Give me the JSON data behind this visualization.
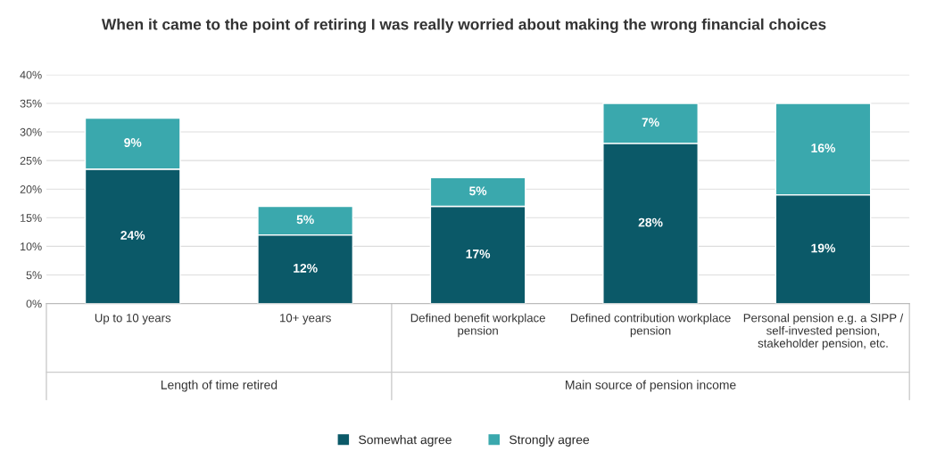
{
  "chart_data": {
    "type": "bar",
    "stacked": true,
    "title": "When it came to the point of retiring I was really worried about making the wrong financial choices",
    "categories": [
      "Up to 10 years",
      "10+ years",
      "Defined benefit workplace\npension",
      "Defined contribution workplace\npension",
      "Personal pension e.g. a SIPP /\nself-invested pension,\nstakeholder pension, etc."
    ],
    "series": [
      {
        "name": "Somewhat agree",
        "color": "#0b5968",
        "values": [
          23.5,
          12,
          17,
          28,
          19
        ],
        "value_labels": [
          "24%",
          "12%",
          "17%",
          "28%",
          "19%"
        ]
      },
      {
        "name": "Strongly agree",
        "color": "#3aa8ad",
        "values": [
          8.9,
          5,
          5,
          7,
          16
        ],
        "value_labels": [
          "9%",
          "5%",
          "5%",
          "7%",
          "16%"
        ]
      }
    ],
    "ylim": [
      0,
      40
    ],
    "yticks": [
      {
        "value": 0,
        "label": "0%"
      },
      {
        "value": 5,
        "label": "5%"
      },
      {
        "value": 10,
        "label": "10%"
      },
      {
        "value": 15,
        "label": "15%"
      },
      {
        "value": 20,
        "label": "20%"
      },
      {
        "value": 25,
        "label": "25%"
      },
      {
        "value": 30,
        "label": "30%"
      },
      {
        "value": 35,
        "label": "35%"
      },
      {
        "value": 40,
        "label": "40%"
      }
    ],
    "grid": "y",
    "legend": "bottom",
    "annotations": [
      "Length of time retired",
      "Main source of pension income"
    ]
  }
}
